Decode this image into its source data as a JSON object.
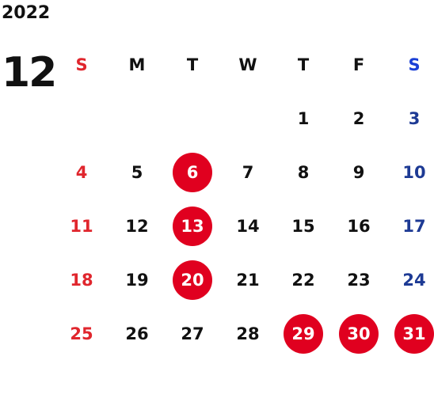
{
  "calendar": {
    "year": "2022",
    "month": "12",
    "weekdays": [
      "S",
      "M",
      "T",
      "W",
      "T",
      "F",
      "S"
    ],
    "weeks": [
      [
        null,
        null,
        null,
        null,
        {
          "day": "1"
        },
        {
          "day": "2"
        },
        {
          "day": "3"
        }
      ],
      [
        {
          "day": "4"
        },
        {
          "day": "5"
        },
        {
          "day": "6",
          "highlight": true
        },
        {
          "day": "7"
        },
        {
          "day": "8"
        },
        {
          "day": "9"
        },
        {
          "day": "10"
        }
      ],
      [
        {
          "day": "11"
        },
        {
          "day": "12"
        },
        {
          "day": "13",
          "highlight": true
        },
        {
          "day": "14"
        },
        {
          "day": "15"
        },
        {
          "day": "16"
        },
        {
          "day": "17"
        }
      ],
      [
        {
          "day": "18"
        },
        {
          "day": "19"
        },
        {
          "day": "20",
          "highlight": true
        },
        {
          "day": "21"
        },
        {
          "day": "22"
        },
        {
          "day": "23"
        },
        {
          "day": "24"
        }
      ],
      [
        {
          "day": "25"
        },
        {
          "day": "26"
        },
        {
          "day": "27"
        },
        {
          "day": "28"
        },
        {
          "day": "29",
          "highlight": true
        },
        {
          "day": "30",
          "highlight": true
        },
        {
          "day": "31",
          "highlight": true
        }
      ]
    ]
  },
  "colors": {
    "text": "#111111",
    "sunday": "#e0262d",
    "saturday": "#1d3a94",
    "saturday_header": "#1a3fd6",
    "highlight_bg": "#e0001f",
    "highlight_text": "#ffffff"
  }
}
